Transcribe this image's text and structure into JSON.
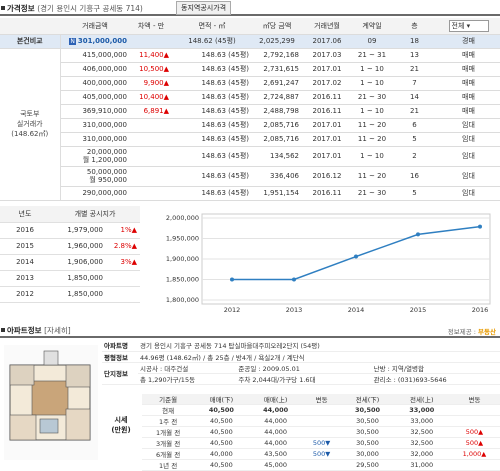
{
  "header": {
    "title": "가격정보",
    "location": "(경기 용인시 기흥구 공세동 714)",
    "tab": "동지역공시가격"
  },
  "table": {
    "cols": [
      "거래금액",
      "차액 - 만",
      "면적 - ㎡",
      "㎡당 금액",
      "거래년월",
      "계약일",
      "층"
    ],
    "filter": "전체",
    "compare": {
      "side": "본건비교",
      "amount": "301,000,000",
      "badge": "N",
      "area": "148.62 (45평)",
      "per_m2": "2,025,299",
      "ym": "2017.06",
      "day": "09",
      "floor": "18",
      "type": "경매"
    },
    "side_label": "국토부\n실거래가\n(148.62㎡)",
    "rows": [
      {
        "amount": "415,000,000",
        "diff": "11,400",
        "area": "148.63 (45평)",
        "per_m2": "2,792,168",
        "ym": "2017.03",
        "day": "21 ~ 31",
        "floor": "13",
        "type": "매매"
      },
      {
        "amount": "406,000,000",
        "diff": "10,500",
        "area": "148.63 (45평)",
        "per_m2": "2,731,615",
        "ym": "2017.01",
        "day": "1 ~ 10",
        "floor": "21",
        "type": "매매"
      },
      {
        "amount": "400,000,000",
        "diff": "9,900",
        "area": "148.63 (45평)",
        "per_m2": "2,691,247",
        "ym": "2017.02",
        "day": "1 ~ 10",
        "floor": "7",
        "type": "매매"
      },
      {
        "amount": "405,000,000",
        "diff": "10,400",
        "area": "148.63 (45평)",
        "per_m2": "2,724,887",
        "ym": "2016.11",
        "day": "21 ~ 30",
        "floor": "14",
        "type": "매매"
      },
      {
        "amount": "369,910,000",
        "diff": "6,891",
        "area": "148.63 (45평)",
        "per_m2": "2,488,798",
        "ym": "2016.11",
        "day": "1 ~ 10",
        "floor": "21",
        "type": "매매"
      },
      {
        "amount": "310,000,000",
        "diff": "",
        "area": "148.63 (45평)",
        "per_m2": "2,085,716",
        "ym": "2017.01",
        "day": "11 ~ 20",
        "floor": "6",
        "type": "임대"
      },
      {
        "amount": "310,000,000",
        "diff": "",
        "area": "148.63 (45평)",
        "per_m2": "2,085,716",
        "ym": "2017.01",
        "day": "11 ~ 20",
        "floor": "5",
        "type": "임대"
      },
      {
        "amount": "20,000,000\n월 1,200,000",
        "diff": "",
        "area": "148.63 (45평)",
        "per_m2": "134,562",
        "ym": "2017.01",
        "day": "1 ~ 10",
        "floor": "2",
        "type": "임대"
      },
      {
        "amount": "50,000,000\n월 950,000",
        "diff": "",
        "area": "148.63 (45평)",
        "per_m2": "336,406",
        "ym": "2016.12",
        "day": "11 ~ 20",
        "floor": "16",
        "type": "임대"
      },
      {
        "amount": "290,000,000",
        "diff": "",
        "area": "148.63 (45평)",
        "per_m2": "1,951,154",
        "ym": "2016.11",
        "day": "21 ~ 30",
        "floor": "5",
        "type": "임대"
      }
    ]
  },
  "gongsi": {
    "cols": [
      "년도",
      "개별 공시지가"
    ],
    "rows": [
      {
        "year": "2016",
        "price": "1,979,000",
        "chg": "1%"
      },
      {
        "year": "2015",
        "price": "1,960,000",
        "chg": "2.8%"
      },
      {
        "year": "2014",
        "price": "1,906,000",
        "chg": "3%"
      },
      {
        "year": "2013",
        "price": "1,850,000",
        "chg": ""
      },
      {
        "year": "2012",
        "price": "1,850,000",
        "chg": ""
      }
    ]
  },
  "chart_data": {
    "type": "line",
    "x": [
      "2012",
      "2013",
      "2014",
      "2015",
      "2016"
    ],
    "values": [
      1850000,
      1850000,
      1906000,
      1960000,
      1979000
    ],
    "yticks": [
      "2,000,000",
      "1,950,000",
      "1,900,000",
      "1,850,000",
      "1,800,000"
    ],
    "ylim": [
      1800000,
      2000000
    ],
    "color": "#2f7fc1"
  },
  "apt": {
    "title": "아파트정보",
    "subtitle": "[자세히]",
    "provider": "정보제공 :",
    "provider_brand": "부동산",
    "name_label": "아파트명",
    "name": "경기 용인시 기흥구 공세동 714 탑실마을대주피오레2단지 (54평)",
    "plan_label": "평형정보",
    "plan": "44.96평 (148.62㎡) / 총 25층 / 방4개 / 욕실2개 / 계단식",
    "complex_label": "단지정보",
    "builder": "시공사 : 대주건설",
    "completed": "준공일 : 2009.05.01",
    "heat": "난방 : 지역/열병합",
    "units": "총 1,290가구/15동",
    "parking": "주차 2,044대/가구당 1.6대",
    "office": "관리소 : (031)693-5646",
    "price_label": "시세\n(만원)",
    "price_cols": [
      "기준월",
      "매매(下)",
      "매매(上)",
      "변동",
      "전세(下)",
      "전세(上)",
      "변동"
    ],
    "price_rows": [
      [
        "현재",
        "40,500",
        "44,000",
        "",
        "30,500",
        "33,000",
        ""
      ],
      [
        "1주 전",
        "40,500",
        "44,000",
        "",
        "30,500",
        "33,000",
        ""
      ],
      [
        "1개월 전",
        "40,500",
        "44,000",
        "",
        "30,500",
        "32,500",
        "500▲"
      ],
      [
        "3개월 전",
        "40,500",
        "44,000",
        "500▼",
        "30,500",
        "32,500",
        "500▲"
      ],
      [
        "6개월 전",
        "40,000",
        "43,500",
        "500▼",
        "30,000",
        "32,000",
        "1,000▲"
      ],
      [
        "1년 전",
        "40,500",
        "45,000",
        "",
        "29,500",
        "31,000",
        ""
      ]
    ]
  }
}
